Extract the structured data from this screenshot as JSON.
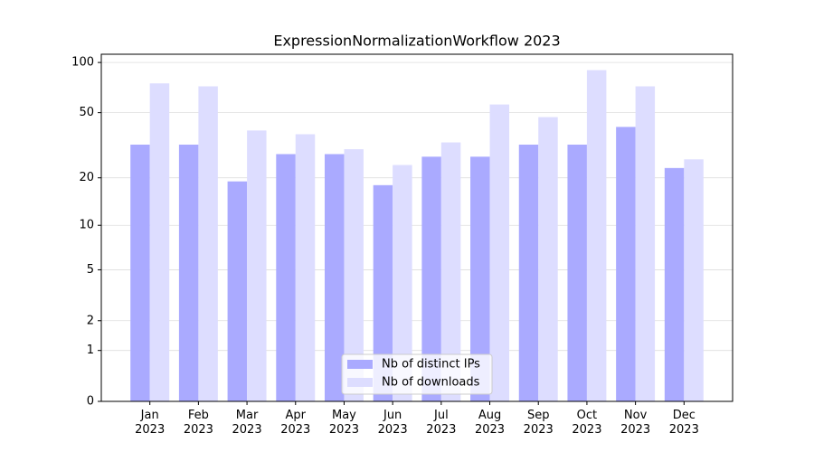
{
  "chart_data": {
    "type": "bar",
    "title": "ExpressionNormalizationWorkflow 2023",
    "categories": [
      "Jan\n2023",
      "Feb\n2023",
      "Mar\n2023",
      "Apr\n2023",
      "May\n2023",
      "Jun\n2023",
      "Jul\n2023",
      "Aug\n2023",
      "Sep\n2023",
      "Oct\n2023",
      "Nov\n2023",
      "Dec\n2023"
    ],
    "series": [
      {
        "name": "Nb of distinct IPs",
        "color": "#aaaaff",
        "values": [
          32,
          32,
          19,
          28,
          28,
          18,
          27,
          27,
          32,
          32,
          41,
          23
        ]
      },
      {
        "name": "Nb of downloads",
        "color": "#ddddff",
        "values": [
          75,
          72,
          39,
          37,
          30,
          24,
          33,
          56,
          47,
          90,
          72,
          26
        ]
      }
    ],
    "yscale": "log1p",
    "ylim": [
      0,
      112
    ],
    "yticks": [
      0,
      1,
      2,
      5,
      10,
      20,
      50,
      100
    ],
    "grid": true,
    "legend": "lower center"
  }
}
